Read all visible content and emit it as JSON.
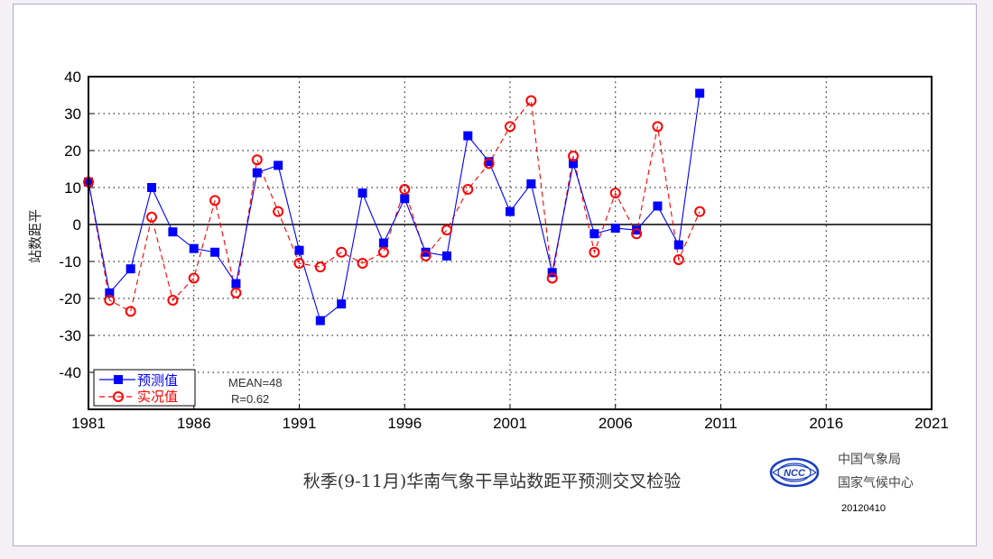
{
  "chart_data": {
    "type": "line",
    "title": "秋季(9-11月)华南气象干旱站数距平预测交叉检验",
    "xlabel": "",
    "ylabel": "站数距平",
    "xlim": [
      1981,
      2021
    ],
    "ylim": [
      -50,
      40
    ],
    "x_ticks": [
      "1981",
      "1986",
      "1991",
      "1996",
      "2001",
      "2006",
      "2011",
      "2016",
      "2021"
    ],
    "y_ticks": [
      "40",
      "30",
      "20",
      "10",
      "0",
      "-10",
      "-20",
      "-30",
      "-40"
    ],
    "grid": true,
    "x": [
      1981,
      1982,
      1983,
      1984,
      1985,
      1986,
      1987,
      1988,
      1989,
      1990,
      1991,
      1992,
      1993,
      1994,
      1995,
      1996,
      1997,
      1998,
      1999,
      2000,
      2001,
      2002,
      2003,
      2004,
      2005,
      2006,
      2007,
      2008,
      2009,
      2010
    ],
    "series": [
      {
        "name": "预测值",
        "color": "#0000ff",
        "marker": "square",
        "values": [
          11.5,
          -18.5,
          -12,
          10,
          -2,
          -6.5,
          -7.5,
          -16,
          14,
          16,
          -7,
          -26,
          -21.5,
          8.5,
          -5,
          7,
          -7.5,
          -8.5,
          24,
          17,
          3.5,
          11,
          -13,
          16.5,
          -2.5,
          -1,
          -1.5,
          5,
          -5.5,
          35.5
        ]
      },
      {
        "name": "实况值",
        "color": "#ff0000",
        "marker": "circle",
        "values": [
          11.5,
          -20.5,
          -23.5,
          2,
          -20.5,
          -14.5,
          6.5,
          -18.5,
          17.5,
          3.5,
          -10.5,
          -11.5,
          -7.5,
          -10.5,
          -7.5,
          9.5,
          -8.5,
          -1.5,
          9.5,
          16.5,
          26.5,
          33.5,
          -14.5,
          18.5,
          -7.5,
          8.5,
          -2.5,
          26.5,
          -9.5,
          3.5
        ]
      }
    ],
    "legend": {
      "position": "bottom-left"
    },
    "annotations": {
      "mean": "MEAN=48",
      "r": "R=0.62"
    }
  },
  "footer": {
    "org_line1": "中国气象局",
    "org_line2": "国家气候中心",
    "date": "20120410",
    "logo_text": "NCC"
  }
}
